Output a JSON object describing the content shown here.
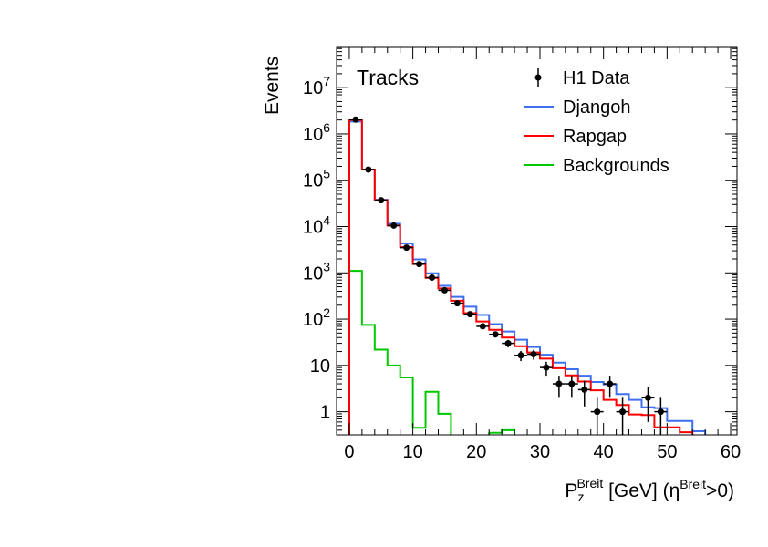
{
  "chart_data": {
    "type": "histogram-step",
    "title": "Tracks",
    "xlabel": {
      "main": "P",
      "sub": "z",
      "sup": "Breit",
      "rest": " [GeV] (η",
      "sup2": "Breit",
      "tail": ">0)"
    },
    "ylabel": "Events",
    "xlim": [
      -2,
      61
    ],
    "ylog": true,
    "ylim_log10": [
      -0.5,
      7.87
    ],
    "xticks": [
      0,
      10,
      20,
      30,
      40,
      50,
      60
    ],
    "yticks": [
      {
        "exp": 0,
        "label": "1"
      },
      {
        "exp": 1,
        "label": "10"
      },
      {
        "exp": 2,
        "base": "10",
        "sup": "2"
      },
      {
        "exp": 3,
        "base": "10",
        "sup": "3"
      },
      {
        "exp": 4,
        "base": "10",
        "sup": "4"
      },
      {
        "exp": 5,
        "base": "10",
        "sup": "5"
      },
      {
        "exp": 6,
        "base": "10",
        "sup": "6"
      },
      {
        "exp": 7,
        "base": "10",
        "sup": "7"
      }
    ],
    "bin_edges": [
      0,
      2,
      4,
      6,
      8,
      10,
      12,
      14,
      16,
      18,
      20,
      22,
      24,
      26,
      28,
      30,
      32,
      34,
      36,
      38,
      40,
      42,
      44,
      46,
      48,
      50,
      52,
      54,
      56,
      58,
      60
    ],
    "legend": [
      "H1 Data",
      "Djangoh",
      "Rapgap",
      "Backgrounds"
    ],
    "legend_position": "top-right",
    "series": [
      {
        "name": "H1 Data",
        "kind": "points",
        "color": "#000000",
        "values": [
          2040000,
          170000,
          37000,
          10500,
          3500,
          1550,
          790,
          420,
          220,
          128,
          70,
          47,
          30,
          16.5,
          17.5,
          9,
          4,
          4,
          3,
          1,
          4,
          1,
          null,
          2,
          1,
          null,
          null,
          null,
          null,
          null
        ],
        "yerr": [
          1430,
          412,
          192,
          102,
          59,
          39,
          28,
          20,
          15,
          11,
          8.4,
          6.9,
          5.5,
          4.1,
          4.2,
          3,
          2,
          2,
          1.7,
          1,
          2,
          1,
          null,
          1.4,
          1,
          null,
          null,
          null,
          null,
          null
        ]
      },
      {
        "name": "Djangoh",
        "kind": "step",
        "color": "#3d6fef",
        "values": [
          1850000,
          170000,
          38000,
          11500,
          4300,
          1950,
          980,
          525,
          302,
          186,
          123,
          78,
          54,
          36,
          25,
          17,
          11.5,
          8.3,
          6,
          4.4,
          3.9,
          2.4,
          1.8,
          1.25,
          1.2,
          0.63,
          0.63,
          0.38,
          0,
          0
        ]
      },
      {
        "name": "Rapgap",
        "kind": "step",
        "color": "#ff0000",
        "values": [
          2000000,
          170000,
          37000,
          10500,
          3600,
          1550,
          780,
          460,
          250,
          135,
          89,
          59,
          40,
          26,
          19,
          14,
          8.7,
          6.1,
          4.5,
          2.9,
          1.8,
          1.4,
          0.87,
          0.85,
          0.46,
          0.46,
          0.36,
          0,
          0,
          0
        ]
      },
      {
        "name": "Backgrounds",
        "kind": "step",
        "color": "#00c800",
        "values": [
          1100,
          75,
          22,
          10,
          5.5,
          0.45,
          2.7,
          0.9,
          0,
          0,
          0,
          0.35,
          0.4,
          0,
          0,
          0,
          0,
          0,
          0,
          0,
          0,
          0,
          0,
          0,
          0,
          0,
          0,
          0,
          0,
          0
        ]
      }
    ]
  }
}
